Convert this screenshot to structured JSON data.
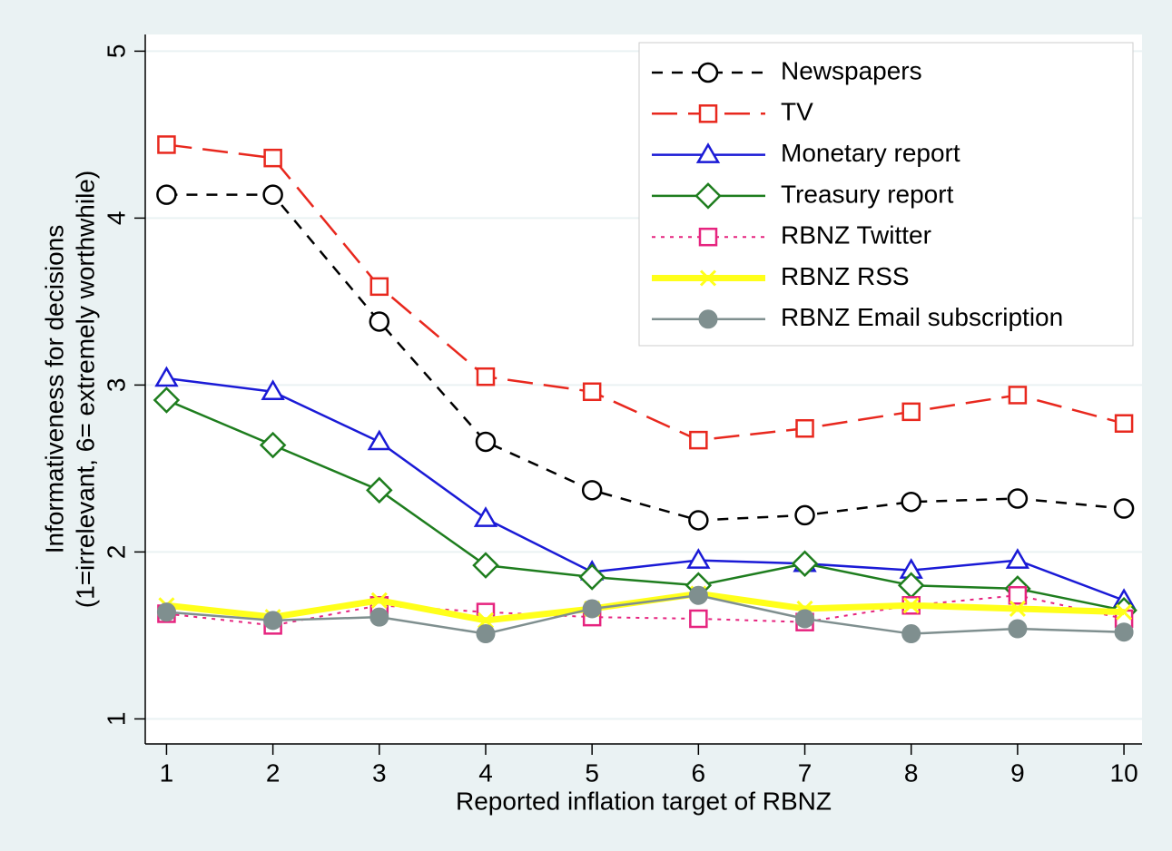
{
  "chart_data": {
    "type": "line",
    "x_label": "Reported inflation target of RBNZ",
    "y_label": [
      "Informativeness for decisions",
      "(1=irrelevant, 6= extremely worthwhile)"
    ],
    "x": [
      1,
      2,
      3,
      4,
      5,
      6,
      7,
      8,
      9,
      10
    ],
    "xlim": [
      0.8,
      10.17
    ],
    "ylim": [
      0.85,
      5.1
    ],
    "xticks": [
      1,
      2,
      3,
      4,
      5,
      6,
      7,
      8,
      9,
      10
    ],
    "yticks": [
      1,
      2,
      3,
      4,
      5
    ],
    "grid": true,
    "legend_position": "upper right",
    "series": [
      {
        "name": "Newspapers",
        "color": "#000000",
        "dash": "12 10",
        "marker": "circle",
        "width": 2.5,
        "values": [
          4.14,
          4.14,
          3.38,
          2.66,
          2.37,
          2.19,
          2.22,
          2.3,
          2.32,
          2.26
        ]
      },
      {
        "name": "TV",
        "color": "#e8281e",
        "dash": "28 12",
        "marker": "square",
        "width": 2.5,
        "values": [
          4.44,
          4.36,
          3.59,
          3.05,
          2.96,
          2.67,
          2.74,
          2.84,
          2.94,
          2.77
        ]
      },
      {
        "name": "Monetary report",
        "color": "#1a1ad6",
        "dash": "none",
        "marker": "triangle",
        "width": 2.5,
        "values": [
          3.04,
          2.96,
          2.66,
          2.2,
          1.88,
          1.95,
          1.93,
          1.89,
          1.95,
          1.71
        ]
      },
      {
        "name": "Treasury report",
        "color": "#1e7d1e",
        "dash": "none",
        "marker": "diamond",
        "width": 2.5,
        "values": [
          2.91,
          2.64,
          2.37,
          1.92,
          1.85,
          1.8,
          1.93,
          1.8,
          1.78,
          1.65
        ]
      },
      {
        "name": "RBNZ Twitter",
        "color": "#e6247f",
        "dash": "4 6",
        "marker": "square",
        "width": 2,
        "values": [
          1.63,
          1.56,
          1.68,
          1.64,
          1.61,
          1.6,
          1.58,
          1.68,
          1.74,
          1.6
        ]
      },
      {
        "name": "RBNZ RSS",
        "color": "#ffff1a",
        "dash": "none",
        "marker": "x",
        "width": 7,
        "values": [
          1.68,
          1.61,
          1.71,
          1.59,
          1.66,
          1.75,
          1.66,
          1.68,
          1.66,
          1.64
        ]
      },
      {
        "name": "RBNZ Email subscription",
        "color": "#7f8f8f",
        "dash": "none",
        "marker": "dot",
        "width": 2.5,
        "values": [
          1.64,
          1.59,
          1.61,
          1.51,
          1.66,
          1.74,
          1.6,
          1.51,
          1.54,
          1.52
        ]
      }
    ]
  }
}
